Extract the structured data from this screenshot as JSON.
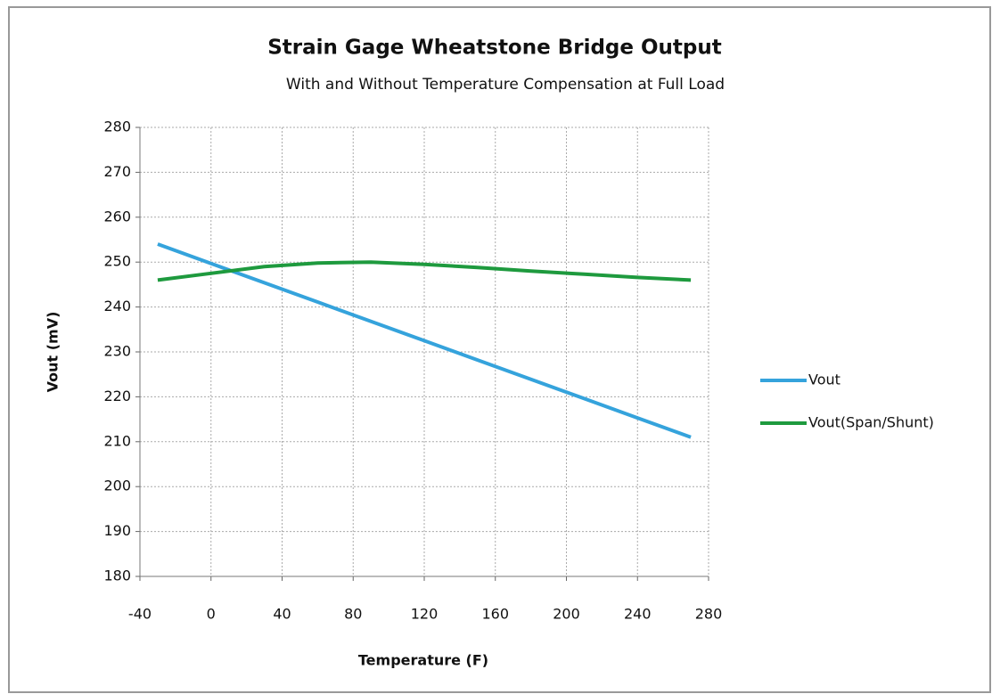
{
  "chart_data": {
    "type": "line",
    "title": "Strain Gage Wheatstone Bridge Output",
    "subtitle": "With and Without Temperature Compensation at Full Load",
    "xlabel": "Temperature (F)",
    "ylabel": "Vout (mV)",
    "x": [
      -30,
      0,
      30,
      60,
      90,
      120,
      150,
      180,
      210,
      240,
      270
    ],
    "series": [
      {
        "name": "Vout",
        "color": "#35a3dc",
        "values": [
          254,
          249.7,
          245.4,
          241.1,
          236.8,
          232.5,
          228.2,
          223.9,
          219.6,
          215.3,
          211
        ]
      },
      {
        "name": "Vout(Span/Shunt)",
        "color": "#1e9a3e",
        "values": [
          246,
          247.5,
          249,
          249.8,
          250,
          249.5,
          248.8,
          248,
          247.3,
          246.6,
          246
        ]
      }
    ],
    "xlim": [
      -40,
      280
    ],
    "xticks": [
      -40,
      0,
      40,
      80,
      120,
      160,
      200,
      240,
      280
    ],
    "ylim": [
      180,
      280
    ],
    "yticks": [
      180,
      190,
      200,
      210,
      220,
      230,
      240,
      250,
      260,
      270,
      280
    ],
    "grid": true,
    "legend": "right"
  }
}
